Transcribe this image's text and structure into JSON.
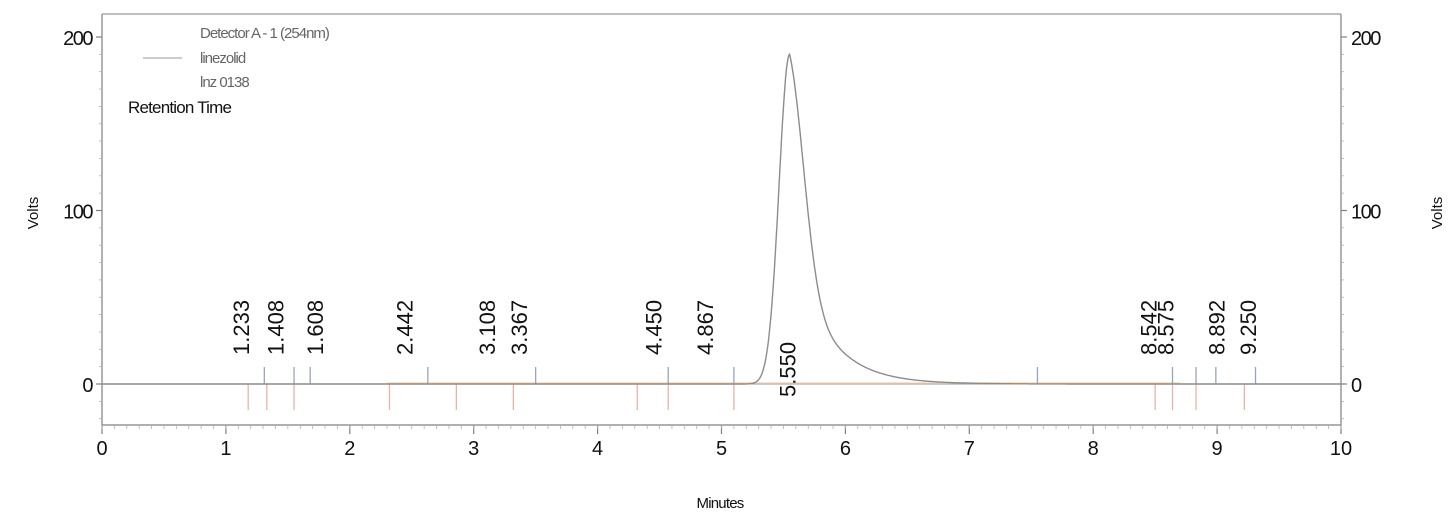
{
  "chart_data": {
    "type": "line",
    "title": "",
    "xlabel": "Minutes",
    "ylabel": "Volts",
    "y2label": "Volts",
    "xlim": [
      0,
      10
    ],
    "ylim": [
      -22,
      200
    ],
    "x_ticks": [
      0,
      1,
      2,
      3,
      4,
      5,
      6,
      7,
      8,
      9,
      10
    ],
    "y_ticks": [
      0,
      100,
      200
    ],
    "grid": false,
    "legend": {
      "position": "top-left",
      "entries": [
        "Detector A - 1 (254nm)",
        "linezolid",
        "lnz 0138"
      ],
      "annotation_title": "Retention Time"
    },
    "series": [
      {
        "name": "linezolid - Detector A - 1 (254nm)",
        "color": "#8c8c8c",
        "peak": {
          "retention_time": 5.55,
          "height": 190,
          "start": 5.25,
          "end": 7.2
        }
      }
    ],
    "peak_labels": [
      {
        "rt": 1.233,
        "label": "1.233"
      },
      {
        "rt": 1.408,
        "label": "1.408"
      },
      {
        "rt": 1.608,
        "label": "1.608"
      },
      {
        "rt": 2.442,
        "label": "2.442"
      },
      {
        "rt": 3.108,
        "label": "3.108"
      },
      {
        "rt": 3.367,
        "label": "3.367"
      },
      {
        "rt": 4.45,
        "label": "4.450"
      },
      {
        "rt": 4.867,
        "label": "4.867"
      },
      {
        "rt": 5.55,
        "label": "5.550"
      },
      {
        "rt": 8.542,
        "label": "8.542"
      },
      {
        "rt": 8.575,
        "label": "8.575"
      },
      {
        "rt": 8.892,
        "label": "8.892"
      },
      {
        "rt": 9.25,
        "label": "9.250"
      }
    ],
    "baseline_markers_up": [
      1.31,
      1.55,
      1.68,
      2.63,
      3.5,
      4.57,
      5.1,
      7.55,
      8.64,
      8.83,
      8.99,
      9.31
    ],
    "baseline_markers_down": [
      1.18,
      1.33,
      1.55,
      2.32,
      2.86,
      3.32,
      4.32,
      4.57,
      5.1,
      8.5,
      8.64,
      8.83,
      9.22
    ]
  },
  "colors": {
    "trace": "#8c8c8c",
    "axis": "#808080",
    "marker_up": "#9aa3b8",
    "marker_down": "#e8b4a8",
    "baseline": "#f2c9a8",
    "text": "#111111",
    "legend_text": "#666666"
  }
}
